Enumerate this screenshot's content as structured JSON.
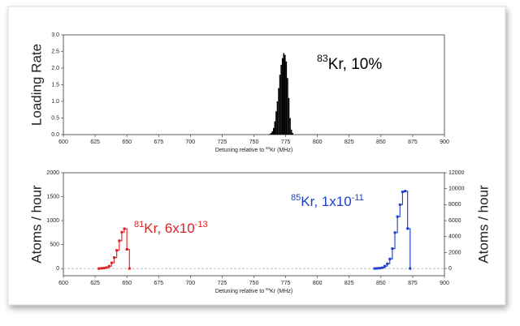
{
  "chart_data": [
    {
      "type": "histogram",
      "ylabel": "Loading Rate",
      "xlabel": [
        {
          "text": "Detuning relative to "
        },
        {
          "text": "84",
          "sup": true
        },
        {
          "text": "Kr (MHz)"
        }
      ],
      "annotation": {
        "parts": [
          {
            "text": "83",
            "sup": true
          },
          {
            "text": "Kr, 10%"
          }
        ],
        "color": "#000000"
      },
      "bins": [
        762,
        763,
        764,
        765,
        766,
        767,
        768,
        769,
        770,
        771,
        772,
        773,
        774,
        775,
        776,
        777,
        778,
        779,
        780,
        781
      ],
      "values": [
        0.02,
        0.05,
        0.1,
        0.2,
        0.4,
        0.7,
        1.0,
        1.4,
        1.8,
        2.1,
        2.3,
        2.45,
        2.4,
        2.2,
        1.7,
        1.1,
        0.5,
        0.15,
        0.05
      ],
      "color": "#000000",
      "xlim": [
        600,
        900
      ],
      "xticks": [
        600,
        625,
        650,
        675,
        700,
        725,
        750,
        775,
        800,
        825,
        850,
        875,
        900
      ],
      "ylim": [
        0,
        3
      ],
      "yticks": [
        {
          "value": 0,
          "label": "0.0"
        },
        0.5,
        {
          "value": 1,
          "label": "1.0"
        },
        1.5,
        {
          "value": 2,
          "label": "2.0"
        },
        2.5,
        {
          "value": 3,
          "label": "3.0"
        }
      ]
    },
    {
      "type": "line",
      "ylabel": "Atoms / hour",
      "y2label": "Atoms / hour",
      "xlabel": [
        {
          "text": "Detuning relative to "
        },
        {
          "text": "84",
          "sup": true
        },
        {
          "text": "Kr (MHz)"
        }
      ],
      "step": true,
      "markers": true,
      "zero_line": true,
      "series": [
        {
          "name": "81Kr",
          "color": "#e02020",
          "x": [
            628,
            630,
            632,
            634,
            636,
            638,
            640,
            642,
            644,
            646,
            648,
            650,
            652
          ],
          "values": [
            0,
            5,
            10,
            20,
            50,
            120,
            230,
            380,
            580,
            760,
            830,
            400,
            0
          ],
          "annotation": {
            "parts": [
              {
                "text": "81",
                "sup": true
              },
              {
                "text": "Kr, 6x10"
              },
              {
                "text": "-13",
                "sup": true
              }
            ]
          }
        },
        {
          "name": "85Kr",
          "color": "#1a3fc8",
          "axis": "y2",
          "x": [
            845,
            847,
            849,
            851,
            853,
            855,
            857,
            859,
            861,
            863,
            865,
            867,
            869,
            871,
            873
          ],
          "values": [
            0,
            20,
            50,
            100,
            300,
            600,
            1200,
            2500,
            4500,
            6500,
            8000,
            9600,
            9700,
            5000,
            0
          ],
          "annotation": {
            "parts": [
              {
                "text": "85",
                "sup": true
              },
              {
                "text": "Kr, 1x10"
              },
              {
                "text": "-11",
                "sup": true
              }
            ]
          }
        }
      ],
      "xlim": [
        600,
        900
      ],
      "xticks": [
        600,
        625,
        650,
        675,
        700,
        725,
        750,
        775,
        800,
        825,
        850,
        875,
        900
      ],
      "ylim": [
        -150,
        2000
      ],
      "yticks": [
        0,
        500,
        1000,
        1500,
        2000
      ],
      "y2lim": [
        -900,
        12000
      ],
      "y2ticks": [
        0,
        2000,
        4000,
        6000,
        8000,
        10000,
        12000
      ]
    }
  ]
}
